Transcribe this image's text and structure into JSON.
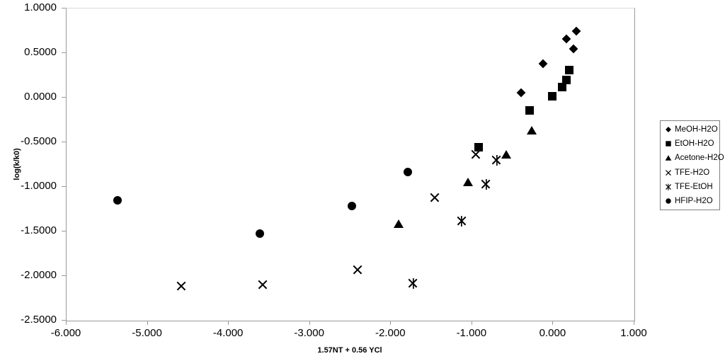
{
  "chart_data": {
    "type": "scatter",
    "title": "",
    "xlabel": "1.57NT + 0.56 YCl",
    "ylabel": "log(k/k0)",
    "xlim": [
      -6.0,
      1.0
    ],
    "ylim": [
      -2.5,
      1.0
    ],
    "x_ticks": [
      "-6.000",
      "-5.000",
      "-4.000",
      "-3.000",
      "-2.000",
      "-1.000",
      "0.000",
      "1.000"
    ],
    "y_ticks": [
      "1.0000",
      "0.5000",
      "0.0000",
      "-0.5000",
      "-1.0000",
      "-1.5000",
      "-2.0000",
      "-2.5000"
    ],
    "grid": false,
    "legend_position": "right",
    "marker_color": "#000000",
    "axis_color": "#9a9a9a",
    "background_color": "#ffffff",
    "series": [
      {
        "name": "MeOH-H2O",
        "marker": "diamond",
        "points": [
          [
            -0.39,
            0.05
          ],
          [
            -0.12,
            0.37
          ],
          [
            0.17,
            0.65
          ],
          [
            0.26,
            0.54
          ],
          [
            0.29,
            0.74
          ]
        ]
      },
      {
        "name": "EtOH-H2O",
        "marker": "square",
        "points": [
          [
            -0.91,
            -0.56
          ],
          [
            -0.28,
            -0.15
          ],
          [
            0.0,
            0.01
          ],
          [
            0.12,
            0.11
          ],
          [
            0.17,
            0.19
          ],
          [
            0.21,
            0.3
          ]
        ]
      },
      {
        "name": "Acetone-H2O",
        "marker": "triangle",
        "points": [
          [
            -1.9,
            -1.42
          ],
          [
            -1.04,
            -0.95
          ],
          [
            -0.57,
            -0.64
          ],
          [
            -0.26,
            -0.37
          ]
        ]
      },
      {
        "name": "TFE-H2O",
        "marker": "x",
        "points": [
          [
            -4.58,
            -2.12
          ],
          [
            -3.57,
            -2.1
          ],
          [
            -2.4,
            -1.94
          ],
          [
            -1.45,
            -1.13
          ],
          [
            -0.95,
            -0.64
          ]
        ]
      },
      {
        "name": "TFE-EtOH",
        "marker": "star",
        "points": [
          [
            -1.72,
            -2.09
          ],
          [
            -1.12,
            -1.39
          ],
          [
            -0.82,
            -0.98
          ],
          [
            -0.69,
            -0.71
          ]
        ]
      },
      {
        "name": "HFIP-H2O",
        "marker": "circle",
        "points": [
          [
            -5.36,
            -1.16
          ],
          [
            -3.61,
            -1.53
          ],
          [
            -2.47,
            -1.22
          ],
          [
            -1.78,
            -0.84
          ]
        ]
      }
    ]
  }
}
